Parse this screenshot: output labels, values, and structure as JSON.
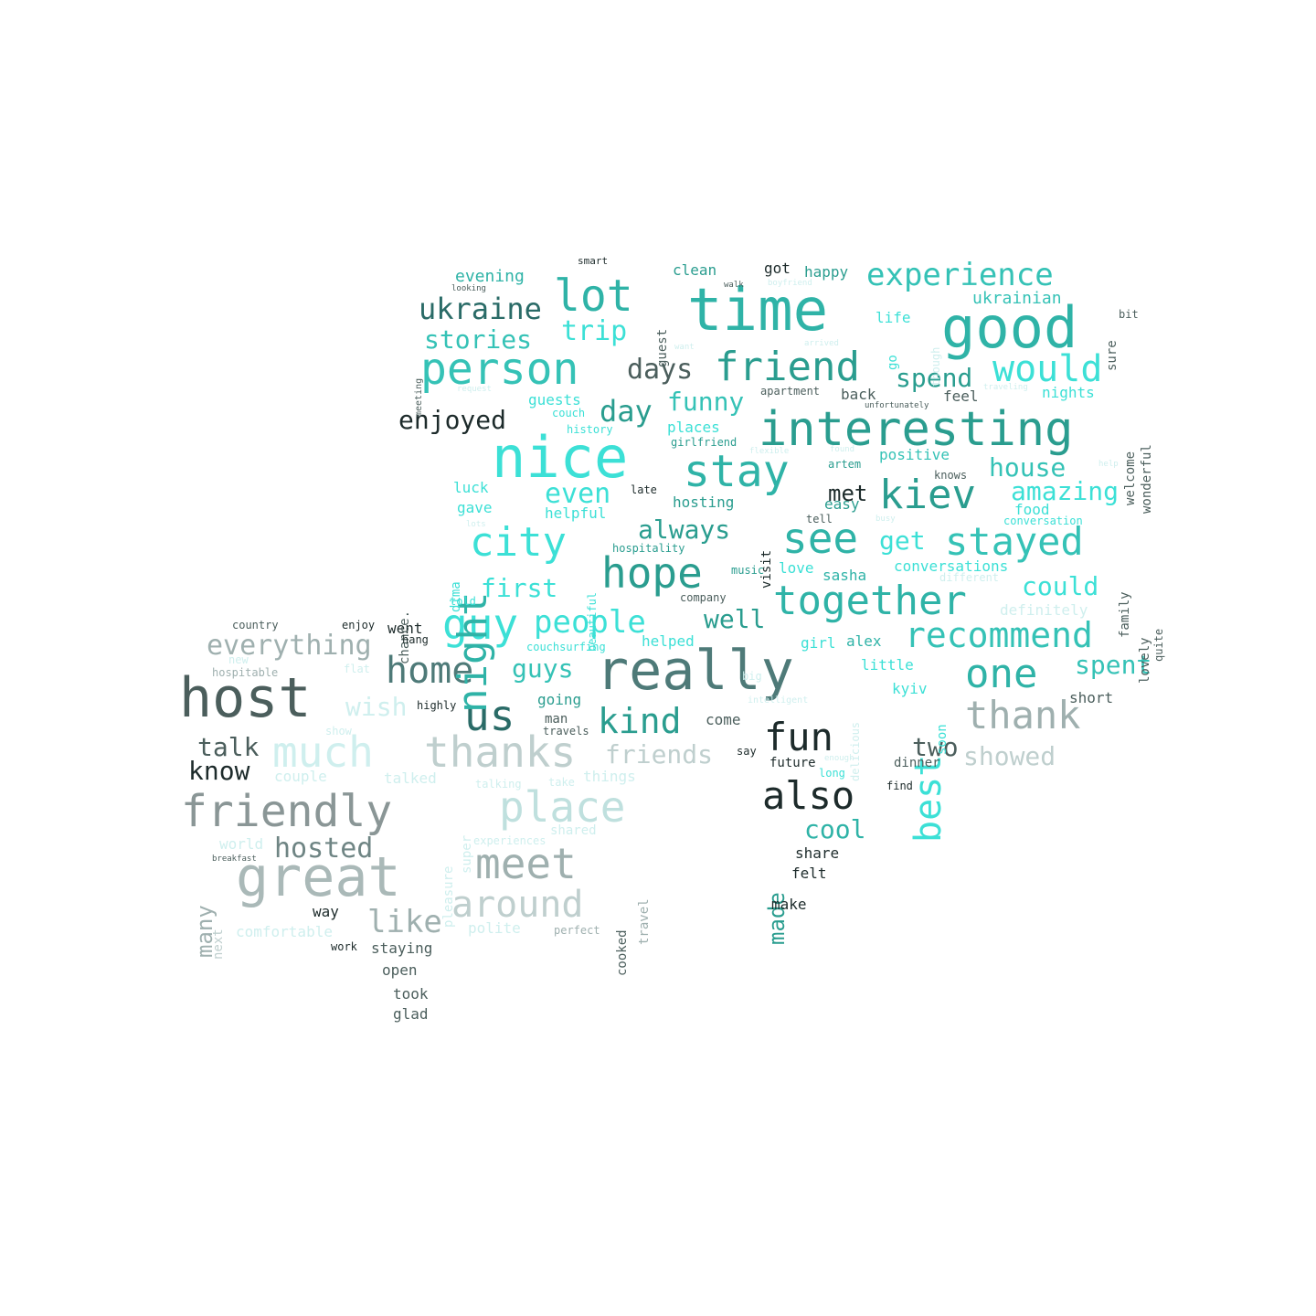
{
  "palette": {
    "dark": "#1d2b2b",
    "teal": "#2a9d8f",
    "cyan": "#3ce0d6",
    "grey": "#8a9696",
    "pale": "#cfefee"
  },
  "words": [
    {
      "t": "time",
      "s": 64,
      "c": "#2fb3a7"
    },
    {
      "t": "good",
      "s": 62,
      "c": "#2fb3a7"
    },
    {
      "t": "nice",
      "s": 62,
      "c": "#3ce0d6"
    },
    {
      "t": "really",
      "s": 60,
      "c": "#4e7a78"
    },
    {
      "t": "host",
      "s": 60,
      "c": "#4b5e5c"
    },
    {
      "t": "interesting",
      "s": 52,
      "c": "#2a9d8f"
    },
    {
      "t": "person",
      "s": 48,
      "c": "#35c2b6"
    },
    {
      "t": "friendly",
      "s": 48,
      "c": "#8a9696"
    },
    {
      "t": "great",
      "s": 60,
      "c": "#aab9b8"
    },
    {
      "t": "lot",
      "s": 48,
      "c": "#2fb3a7"
    },
    {
      "t": "friend",
      "s": 44,
      "c": "#2a9d8f"
    },
    {
      "t": "stay",
      "s": 48,
      "c": "#2fb3a7"
    },
    {
      "t": "see",
      "s": 46,
      "c": "#2fb3a7"
    },
    {
      "t": "kiev",
      "s": 44,
      "c": "#2a9d8f"
    },
    {
      "t": "hope",
      "s": 46,
      "c": "#2a9d8f"
    },
    {
      "t": "city",
      "s": 44,
      "c": "#3ce0d6"
    },
    {
      "t": "together",
      "s": 44,
      "c": "#2fb3a7"
    },
    {
      "t": "stayed",
      "s": 42,
      "c": "#35c2b6"
    },
    {
      "t": "thank",
      "s": 42,
      "c": "#9fb0af"
    },
    {
      "t": "one",
      "s": 44,
      "c": "#2fb3a7"
    },
    {
      "t": "recommend",
      "s": 38,
      "c": "#35c2b6"
    },
    {
      "t": "also",
      "s": 42,
      "c": "#1d2b2b"
    },
    {
      "t": "fun",
      "s": 42,
      "c": "#1d2b2b"
    },
    {
      "t": "us",
      "s": 46,
      "c": "#2a6b67"
    },
    {
      "t": "guy",
      "s": 46,
      "c": "#3ce0d6"
    },
    {
      "t": "home",
      "s": 40,
      "c": "#4e7a78"
    },
    {
      "t": "thanks",
      "s": 46,
      "c": "#bfcfce"
    },
    {
      "t": "much",
      "s": 46,
      "c": "#cfefee"
    },
    {
      "t": "place",
      "s": 46,
      "c": "#bfe0de"
    },
    {
      "t": "meet",
      "s": 46,
      "c": "#9fb0af"
    },
    {
      "t": "around",
      "s": 40,
      "c": "#bfcfce"
    },
    {
      "t": "would",
      "s": 40,
      "c": "#3ce0d6"
    },
    {
      "t": "experience",
      "s": 34,
      "c": "#35c2b6"
    },
    {
      "t": "kind",
      "s": 38,
      "c": "#2a9d8f"
    },
    {
      "t": "night",
      "s": 44,
      "c": "#2fb3a7",
      "r": 1
    },
    {
      "t": "best",
      "s": 40,
      "c": "#3ce0d6",
      "r": 1
    },
    {
      "t": "ukraine",
      "s": 32,
      "c": "#2a6b67"
    },
    {
      "t": "stories",
      "s": 28,
      "c": "#35c2b6"
    },
    {
      "t": "trip",
      "s": 30,
      "c": "#3ce0d6"
    },
    {
      "t": "days",
      "s": 30,
      "c": "#4b5e5c"
    },
    {
      "t": "day",
      "s": 32,
      "c": "#2a9d8f"
    },
    {
      "t": "funny",
      "s": 28,
      "c": "#35c2b6"
    },
    {
      "t": "spend",
      "s": 28,
      "c": "#2a9d8f"
    },
    {
      "t": "enjoyed",
      "s": 28,
      "c": "#1d2b2b"
    },
    {
      "t": "even",
      "s": 30,
      "c": "#3ce0d6"
    },
    {
      "t": "house",
      "s": 28,
      "c": "#35c2b6"
    },
    {
      "t": "amazing",
      "s": 28,
      "c": "#3ce0d6"
    },
    {
      "t": "met",
      "s": 24,
      "c": "#1d2b2b"
    },
    {
      "t": "always",
      "s": 28,
      "c": "#2a9d8f"
    },
    {
      "t": "get",
      "s": 28,
      "c": "#3ce0d6"
    },
    {
      "t": "first",
      "s": 28,
      "c": "#3ce0d6"
    },
    {
      "t": "people",
      "s": 34,
      "c": "#3ce0d6"
    },
    {
      "t": "well",
      "s": 28,
      "c": "#2a9d8f"
    },
    {
      "t": "could",
      "s": 28,
      "c": "#3ce0d6"
    },
    {
      "t": "everything",
      "s": 30,
      "c": "#9fb0af"
    },
    {
      "t": "guys",
      "s": 28,
      "c": "#35c2b6"
    },
    {
      "t": "spent",
      "s": 28,
      "c": "#35c2b6"
    },
    {
      "t": "talk",
      "s": 28,
      "c": "#4b5e5c"
    },
    {
      "t": "know",
      "s": 28,
      "c": "#1d2b2b"
    },
    {
      "t": "wish",
      "s": 28,
      "c": "#cfefee"
    },
    {
      "t": "friends",
      "s": 28,
      "c": "#bfcfce"
    },
    {
      "t": "two",
      "s": 28,
      "c": "#4b5e5c"
    },
    {
      "t": "showed",
      "s": 28,
      "c": "#bfcfce"
    },
    {
      "t": "hosted",
      "s": 30,
      "c": "#6f8584"
    },
    {
      "t": "cool",
      "s": 28,
      "c": "#2fb3a7"
    },
    {
      "t": "like",
      "s": 34,
      "c": "#9fb0af"
    },
    {
      "t": "many",
      "s": 24,
      "c": "#9fb0af",
      "r": 1
    },
    {
      "t": "made",
      "s": 24,
      "c": "#2a9d8f",
      "r": 1
    },
    {
      "t": "ukrainian",
      "s": 18,
      "c": "#35c2b6"
    },
    {
      "t": "evening",
      "s": 18,
      "c": "#2fb3a7"
    },
    {
      "t": "clean",
      "s": 16,
      "c": "#2a9d8f"
    },
    {
      "t": "got",
      "s": 16,
      "c": "#1d2b2b"
    },
    {
      "t": "happy",
      "s": 16,
      "c": "#2a9d8f"
    },
    {
      "t": "life",
      "s": 16,
      "c": "#3ce0d6"
    },
    {
      "t": "nights",
      "s": 16,
      "c": "#3ce0d6"
    },
    {
      "t": "back",
      "s": 16,
      "c": "#4b5e5c"
    },
    {
      "t": "feel",
      "s": 16,
      "c": "#4b5e5c"
    },
    {
      "t": "guests",
      "s": 16,
      "c": "#3ce0d6"
    },
    {
      "t": "places",
      "s": 16,
      "c": "#3ce0d6"
    },
    {
      "t": "positive",
      "s": 16,
      "c": "#35c2b6"
    },
    {
      "t": "luck",
      "s": 16,
      "c": "#3ce0d6"
    },
    {
      "t": "gave",
      "s": 16,
      "c": "#3ce0d6"
    },
    {
      "t": "helpful",
      "s": 16,
      "c": "#3ce0d6"
    },
    {
      "t": "hosting",
      "s": 16,
      "c": "#2a9d8f"
    },
    {
      "t": "easy",
      "s": 16,
      "c": "#2a9d8f"
    },
    {
      "t": "food",
      "s": 16,
      "c": "#3ce0d6"
    },
    {
      "t": "sasha",
      "s": 16,
      "c": "#2fb3a7"
    },
    {
      "t": "conversations",
      "s": 16,
      "c": "#3ce0d6"
    },
    {
      "t": "love",
      "s": 16,
      "c": "#3ce0d6"
    },
    {
      "t": "definitely",
      "s": 16,
      "c": "#cfefee"
    },
    {
      "t": "alex",
      "s": 16,
      "c": "#2fb3a7"
    },
    {
      "t": "girl",
      "s": 16,
      "c": "#3ce0d6"
    },
    {
      "t": "little",
      "s": 16,
      "c": "#3ce0d6"
    },
    {
      "t": "helped",
      "s": 16,
      "c": "#3ce0d6"
    },
    {
      "t": "kyiv",
      "s": 16,
      "c": "#3ce0d6"
    },
    {
      "t": "short",
      "s": 16,
      "c": "#4b5e5c"
    },
    {
      "t": "going",
      "s": 16,
      "c": "#2a9d8f"
    },
    {
      "t": "come",
      "s": 16,
      "c": "#4b5e5c"
    },
    {
      "t": "went",
      "s": 16,
      "c": "#1d2b2b"
    },
    {
      "t": "future",
      "s": 14,
      "c": "#1d2b2b"
    },
    {
      "t": "dinner",
      "s": 14,
      "c": "#4b5e5c"
    },
    {
      "t": "share",
      "s": 16,
      "c": "#1d2b2b"
    },
    {
      "t": "felt",
      "s": 16,
      "c": "#1d2b2b"
    },
    {
      "t": "make",
      "s": 16,
      "c": "#1d2b2b"
    },
    {
      "t": "things",
      "s": 16,
      "c": "#cfefee"
    },
    {
      "t": "talked",
      "s": 16,
      "c": "#cfefee"
    },
    {
      "t": "couple",
      "s": 16,
      "c": "#cfefee"
    },
    {
      "t": "world",
      "s": 16,
      "c": "#cfefee"
    },
    {
      "t": "way",
      "s": 16,
      "c": "#1d2b2b"
    },
    {
      "t": "staying",
      "s": 16,
      "c": "#4b5e5c"
    },
    {
      "t": "open",
      "s": 16,
      "c": "#4b5e5c"
    },
    {
      "t": "took",
      "s": 16,
      "c": "#4b5e5c"
    },
    {
      "t": "glad",
      "s": 16,
      "c": "#4b5e5c"
    },
    {
      "t": "polite",
      "s": 16,
      "c": "#cfefee"
    },
    {
      "t": "comfortable",
      "s": 16,
      "c": "#cfefee"
    },
    {
      "t": "man",
      "s": 14,
      "c": "#4b5e5c"
    },
    {
      "t": "wonderful",
      "s": 14,
      "c": "#4b5e5c",
      "r": 1
    },
    {
      "t": "welcome",
      "s": 14,
      "c": "#4b5e5c",
      "r": 1
    },
    {
      "t": "family",
      "s": 14,
      "c": "#4b5e5c",
      "r": 1
    },
    {
      "t": "lovely",
      "s": 14,
      "c": "#4b5e5c",
      "r": 1
    },
    {
      "t": "sure",
      "s": 14,
      "c": "#4b5e5c",
      "r": 1
    },
    {
      "t": "guest",
      "s": 14,
      "c": "#4b5e5c",
      "r": 1
    },
    {
      "t": "visit",
      "s": 14,
      "c": "#1d2b2b",
      "r": 1
    },
    {
      "t": "soon",
      "s": 14,
      "c": "#3ce0d6",
      "r": 1
    },
    {
      "t": "cooked",
      "s": 14,
      "c": "#4b5e5c",
      "r": 1
    },
    {
      "t": "travel",
      "s": 14,
      "c": "#9fb0af",
      "r": 1
    },
    {
      "t": "super",
      "s": 14,
      "c": "#cfefee",
      "r": 1
    },
    {
      "t": "pleasure",
      "s": 14,
      "c": "#cfefee",
      "r": 1
    },
    {
      "t": "next",
      "s": 14,
      "c": "#bfcfce",
      "r": 1
    },
    {
      "t": "chance.",
      "s": 14,
      "c": "#4b5e5c",
      "r": 1
    },
    {
      "t": "dima",
      "s": 14,
      "c": "#3ce0d6",
      "r": 1
    },
    {
      "t": "go",
      "s": 14,
      "c": "#3ce0d6",
      "r": 1
    },
    {
      "t": "smart",
      "s": 11,
      "c": "#1d2b2b"
    },
    {
      "t": "country",
      "s": 12,
      "c": "#4b5e5c"
    },
    {
      "t": "enjoy",
      "s": 12,
      "c": "#1d2b2b"
    },
    {
      "t": "highly",
      "s": 12,
      "c": "#1d2b2b"
    },
    {
      "t": "travels",
      "s": 12,
      "c": "#4b5e5c"
    },
    {
      "t": "say",
      "s": 12,
      "c": "#1d2b2b"
    },
    {
      "t": "find",
      "s": 12,
      "c": "#1d2b2b"
    },
    {
      "t": "late",
      "s": 12,
      "c": "#1d2b2b"
    },
    {
      "t": "tell",
      "s": 12,
      "c": "#4b5e5c"
    },
    {
      "t": "company",
      "s": 12,
      "c": "#4b5e5c"
    },
    {
      "t": "hang",
      "s": 12,
      "c": "#1d2b2b"
    },
    {
      "t": "work",
      "s": 12,
      "c": "#1d2b2b"
    },
    {
      "t": "perfect",
      "s": 12,
      "c": "#9fb0af"
    },
    {
      "t": "hospitable",
      "s": 12,
      "c": "#9fb0af"
    },
    {
      "t": "apartment",
      "s": 12,
      "c": "#4b5e5c"
    },
    {
      "t": "girlfriend",
      "s": 12,
      "c": "#2a9d8f"
    },
    {
      "t": "artem",
      "s": 12,
      "c": "#2a9d8f"
    },
    {
      "t": "knows",
      "s": 12,
      "c": "#4b5e5c"
    },
    {
      "t": "couchsurfing",
      "s": 12,
      "c": "#3ce0d6"
    },
    {
      "t": "hospitality",
      "s": 12,
      "c": "#2a9d8f"
    },
    {
      "t": "music",
      "s": 12,
      "c": "#2a9d8f"
    },
    {
      "t": "conversation",
      "s": 12,
      "c": "#3ce0d6"
    },
    {
      "t": "history",
      "s": 12,
      "c": "#3ce0d6"
    },
    {
      "t": "couch",
      "s": 12,
      "c": "#3ce0d6"
    },
    {
      "t": "told",
      "s": 12,
      "c": "#3ce0d6"
    },
    {
      "t": "different",
      "s": 12,
      "c": "#cfefee"
    },
    {
      "t": "experiences",
      "s": 12,
      "c": "#cfefee"
    },
    {
      "t": "shared",
      "s": 14,
      "c": "#cfefee"
    },
    {
      "t": "take",
      "s": 12,
      "c": "#cfefee"
    },
    {
      "t": "long",
      "s": 12,
      "c": "#3ce0d6"
    },
    {
      "t": "big",
      "s": 12,
      "c": "#cfefee"
    },
    {
      "t": "intelligent",
      "s": 10,
      "c": "#cfefee"
    },
    {
      "t": "bit",
      "s": 12,
      "c": "#4b5e5c"
    },
    {
      "t": "quite",
      "s": 12,
      "c": "#4b5e5c",
      "r": 1
    },
    {
      "t": "though",
      "s": 12,
      "c": "#cfefee",
      "r": 1
    },
    {
      "t": "beautiful",
      "s": 12,
      "c": "#3ce0d6",
      "r": 1
    },
    {
      "t": "delicious",
      "s": 12,
      "c": "#cfefee",
      "r": 1
    },
    {
      "t": "meeting",
      "s": 10,
      "c": "#4b5e5c",
      "r": 1
    },
    {
      "t": "looking",
      "s": 9,
      "c": "#4b5e5c"
    },
    {
      "t": "boyfriend",
      "s": 9,
      "c": "#cfefee"
    },
    {
      "t": "walk",
      "s": 9,
      "c": "#4b5e5c"
    },
    {
      "t": "want",
      "s": 9,
      "c": "#cfefee"
    },
    {
      "t": "arrived",
      "s": 9,
      "c": "#cfefee"
    },
    {
      "t": "request",
      "s": 9,
      "c": "#cfefee"
    },
    {
      "t": "traveling",
      "s": 9,
      "c": "#cfefee"
    },
    {
      "t": "unfortunately",
      "s": 9,
      "c": "#4b5e5c"
    },
    {
      "t": "flexible",
      "s": 9,
      "c": "#cfefee"
    },
    {
      "t": "found",
      "s": 9,
      "c": "#cfefee"
    },
    {
      "t": "help",
      "s": 9,
      "c": "#cfefee"
    },
    {
      "t": "busy",
      "s": 9,
      "c": "#cfefee"
    },
    {
      "t": "lots",
      "s": 9,
      "c": "#cfefee"
    },
    {
      "t": "enough",
      "s": 9,
      "c": "#cfefee"
    },
    {
      "t": "breakfast",
      "s": 9,
      "c": "#4b5e5c"
    },
    {
      "t": "new",
      "s": 12,
      "c": "#cfefee"
    },
    {
      "t": "flat",
      "s": 12,
      "c": "#cfefee"
    },
    {
      "t": "show",
      "s": 12,
      "c": "#cfefee"
    },
    {
      "t": "talking",
      "s": 12,
      "c": "#cfefee"
    }
  ]
}
